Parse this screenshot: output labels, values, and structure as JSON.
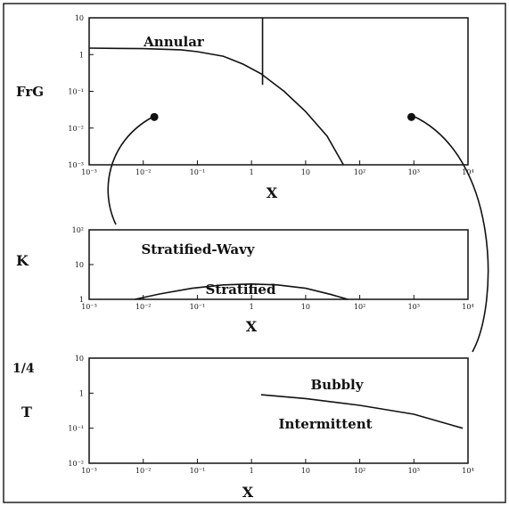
{
  "figure": {
    "border_color": "#222222",
    "line_color": "#111111"
  },
  "chart_data": [
    {
      "type": "line",
      "ylabel": "FrG",
      "xlabel": "X",
      "xscale": "log",
      "yscale": "log",
      "xlim": [
        0.001,
        10000
      ],
      "ylim": [
        0.001,
        10
      ],
      "x_ticks": [
        "10⁻³",
        "10⁻²",
        "10⁻¹",
        "1",
        "10",
        "10²",
        "10³",
        "10⁴"
      ],
      "y_ticks": [
        "10⁻³",
        "10⁻²",
        "10⁻¹",
        "1",
        "10"
      ],
      "region_labels": [
        "Annular"
      ],
      "curve": {
        "x": [
          0.001,
          0.01,
          0.05,
          0.1,
          0.3,
          0.7,
          1.5,
          4,
          10,
          25,
          50
        ],
        "y": [
          1.5,
          1.45,
          1.35,
          1.2,
          0.9,
          0.55,
          0.3,
          0.1,
          0.028,
          0.006,
          0.001
        ]
      },
      "vertical_line": {
        "x": 1.6,
        "y_from": 0.15,
        "y_to": 10
      },
      "markers": [
        {
          "x": 0.016,
          "y": 0.02
        },
        {
          "x": 900,
          "y": 0.02
        }
      ]
    },
    {
      "type": "line",
      "ylabel": "K",
      "xlabel": "X",
      "xscale": "log",
      "yscale": "log",
      "xlim": [
        0.001,
        10000
      ],
      "ylim": [
        1,
        1000
      ],
      "x_ticks": [
        "10⁻³",
        "10⁻²",
        "10⁻¹",
        "1",
        "10",
        "10²",
        "10³",
        "10⁴"
      ],
      "y_ticks": [
        "1",
        "10",
        "10²"
      ],
      "region_labels": [
        "Stratified-Wavy",
        "Stratified"
      ],
      "curve": {
        "x": [
          0.007,
          0.02,
          0.08,
          0.3,
          1,
          3,
          10,
          30,
          60
        ],
        "y": [
          1,
          1.7,
          3,
          4.2,
          4.6,
          4.2,
          3,
          1.6,
          1
        ]
      }
    },
    {
      "type": "line",
      "ylabel": "T",
      "ylabel_prefix": "1/4",
      "xlabel": "X",
      "xscale": "log",
      "yscale": "log",
      "xlim": [
        0.001,
        10000
      ],
      "ylim": [
        0.01,
        10
      ],
      "x_ticks": [
        "10⁻³",
        "10⁻²",
        "10⁻¹",
        "1",
        "10",
        "10²",
        "10³",
        "10⁴"
      ],
      "y_ticks": [
        "10⁻²",
        "10⁻¹",
        "1",
        "10"
      ],
      "region_labels": [
        "Bubbly",
        "Intermittent"
      ],
      "curve": {
        "x": [
          1.5,
          10,
          100,
          1000,
          8000
        ],
        "y": [
          0.9,
          0.7,
          0.45,
          0.25,
          0.1
        ]
      }
    }
  ]
}
